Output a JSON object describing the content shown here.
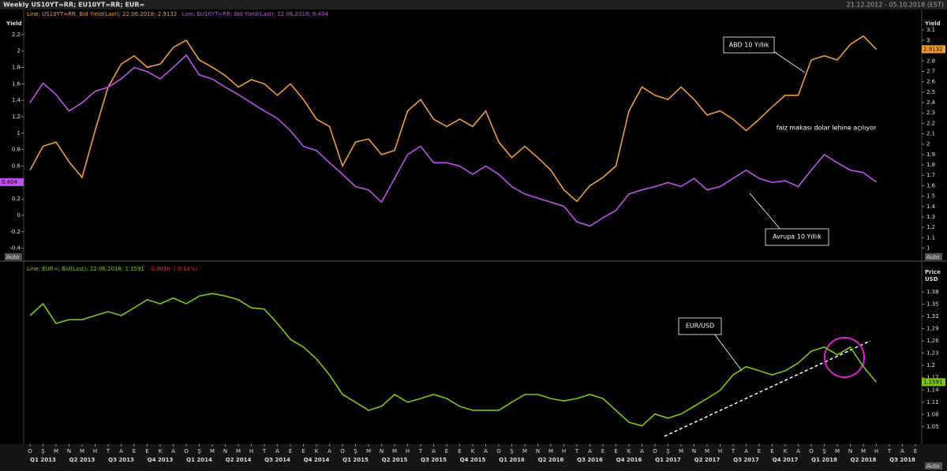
{
  "header": {
    "title": "Weekly US10YT=RR; EU10YT=RR; EUR=",
    "date_range": "21.12.2012 - 05.10.2018 (EST)"
  },
  "chart_data": [
    {
      "type": "line",
      "y_label": "Yield",
      "y2_label": "Yield",
      "y_scale_mode": "Auto",
      "y2_scale_mode": "Auto",
      "ylim": [
        -0.5,
        2.41
      ],
      "yticks": [
        -0.4,
        -0.2,
        0,
        0.2,
        0.4,
        0.6,
        0.8,
        1,
        1.2,
        1.4,
        1.6,
        1.8,
        2,
        2.2
      ],
      "y2lim": [
        0.92,
        3.22
      ],
      "y2ticks": [
        1,
        1.1,
        1.2,
        1.3,
        1.4,
        1.5,
        1.6,
        1.7,
        1.8,
        1.9,
        2,
        2.1,
        2.2,
        2.3,
        2.4,
        2.5,
        2.6,
        2.7,
        2.8,
        2.9,
        3,
        3.1
      ],
      "series": [
        {
          "name": "Line; US10YT=RR; Bid Yield(Last); 22.06.2018; 2.9132",
          "color": "#f39a32",
          "axis": "y2",
          "values": [
            1.75,
            1.98,
            2.02,
            1.83,
            1.68,
            2.13,
            2.55,
            2.77,
            2.85,
            2.74,
            2.77,
            2.93,
            3.0,
            2.81,
            2.74,
            2.66,
            2.55,
            2.62,
            2.58,
            2.47,
            2.58,
            2.43,
            2.24,
            2.17,
            1.79,
            2.02,
            2.05,
            1.9,
            1.94,
            2.32,
            2.43,
            2.24,
            2.17,
            2.24,
            2.17,
            2.32,
            2.02,
            1.87,
            1.98,
            1.87,
            1.75,
            1.56,
            1.45,
            1.6,
            1.68,
            1.79,
            2.32,
            2.55,
            2.47,
            2.43,
            2.55,
            2.43,
            2.28,
            2.32,
            2.24,
            2.13,
            2.24,
            2.36,
            2.47,
            2.47,
            2.81,
            2.85,
            2.81,
            2.96,
            3.04,
            2.9132,
            null,
            null,
            null
          ]
        },
        {
          "name": "Line; EU10YT=RR; Bid Yield(Last); 22.06.2018; 0.404",
          "color": "#c04ef0",
          "axis": "y",
          "values": [
            1.37,
            1.61,
            1.47,
            1.27,
            1.37,
            1.51,
            1.56,
            1.66,
            1.8,
            1.75,
            1.66,
            1.8,
            1.95,
            1.71,
            1.66,
            1.56,
            1.47,
            1.37,
            1.27,
            1.18,
            1.03,
            0.84,
            0.79,
            0.64,
            0.5,
            0.35,
            0.31,
            0.16,
            0.45,
            0.74,
            0.84,
            0.64,
            0.64,
            0.6,
            0.5,
            0.6,
            0.5,
            0.35,
            0.26,
            0.21,
            0.16,
            0.11,
            -0.08,
            -0.13,
            -0.03,
            0.06,
            0.26,
            0.31,
            0.35,
            0.4,
            0.35,
            0.45,
            0.31,
            0.35,
            0.45,
            0.55,
            0.45,
            0.4,
            0.42,
            0.35,
            0.55,
            0.74,
            0.64,
            0.55,
            0.52,
            0.404,
            null,
            null,
            null
          ]
        }
      ],
      "annotations": [
        "ABD 10 Yıllık",
        "faiz makası dolar lehine açılıyor",
        "Avrupa 10 Yıllık"
      ]
    },
    {
      "type": "line",
      "y_label": "Price",
      "y_unit": "USD",
      "y_scale_mode": "Auto",
      "ylim": [
        1.013,
        1.438
      ],
      "yticks": [
        1.05,
        1.08,
        1.11,
        1.14,
        1.17,
        1.2,
        1.23,
        1.26,
        1.29,
        1.32,
        1.35,
        1.38
      ],
      "categories": [
        "O",
        "Ş",
        "M",
        "N",
        "M",
        "H",
        "T",
        "A",
        "E",
        "E",
        "K",
        "A",
        "O",
        "Ş",
        "M",
        "N",
        "M",
        "H",
        "T",
        "A",
        "E",
        "E",
        "K",
        "A",
        "O",
        "Ş",
        "M",
        "N",
        "M",
        "H",
        "T",
        "A",
        "E",
        "E",
        "K",
        "A",
        "O",
        "Ş",
        "M",
        "N",
        "M",
        "H",
        "T",
        "A",
        "E",
        "E",
        "K",
        "A",
        "O",
        "Ş",
        "M",
        "N",
        "M",
        "H",
        "T",
        "A",
        "E",
        "E",
        "K",
        "A",
        "O",
        "Ş",
        "M",
        "N",
        "M",
        "H",
        "T",
        "A",
        "E"
      ],
      "quarters": [
        "Q1 2013",
        "Q2 2013",
        "Q3 2013",
        "Q4 2013",
        "Q1 2014",
        "Q2 2014",
        "Q3 2014",
        "Q4 2014",
        "Q1 2015",
        "Q2 2015",
        "Q3 2015",
        "Q4 2015",
        "Q1 2016",
        "Q2 2016",
        "Q3 2016",
        "Q4 2016",
        "Q1 2017",
        "Q2 2017",
        "Q3 2017",
        "Q4 2017",
        "Q1 2018",
        "Q2 2018",
        "Q3 2018"
      ],
      "series": [
        {
          "name": "Line; EUR=; Bid(Last); 22.06.2018; 1.1591",
          "change": "-0.0016",
          "change_pct": "(-0.14%)",
          "color": "#7cc80e",
          "values": [
            1.322,
            1.351,
            1.303,
            1.312,
            1.312,
            1.322,
            1.332,
            1.322,
            1.341,
            1.361,
            1.351,
            1.365,
            1.351,
            1.37,
            1.376,
            1.37,
            1.361,
            1.341,
            1.338,
            1.303,
            1.264,
            1.245,
            1.216,
            1.177,
            1.129,
            1.11,
            1.09,
            1.1,
            1.129,
            1.11,
            1.119,
            1.129,
            1.119,
            1.1,
            1.09,
            1.09,
            1.09,
            1.11,
            1.129,
            1.129,
            1.119,
            1.113,
            1.119,
            1.129,
            1.119,
            1.09,
            1.061,
            1.052,
            1.081,
            1.071,
            1.081,
            1.1,
            1.119,
            1.139,
            1.177,
            1.197,
            1.187,
            1.177,
            1.187,
            1.206,
            1.235,
            1.245,
            1.226,
            1.245,
            1.197,
            1.1591,
            null,
            null,
            null
          ]
        }
      ],
      "annotations": [
        "EUR/USD"
      ]
    }
  ]
}
